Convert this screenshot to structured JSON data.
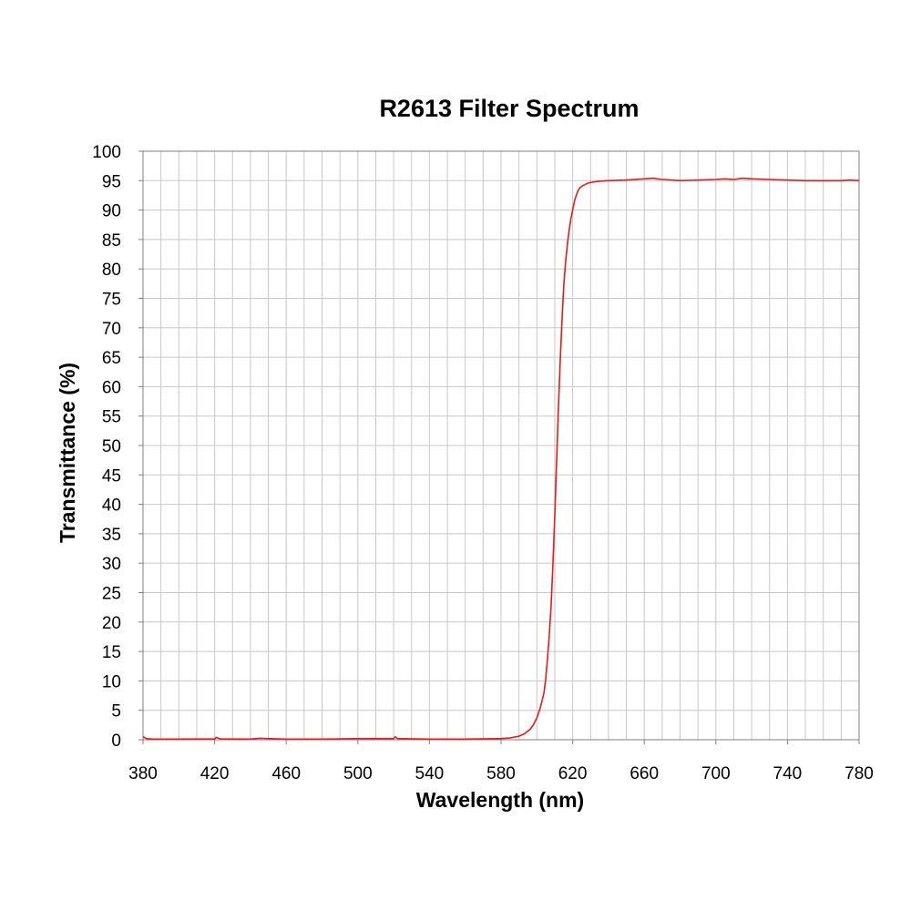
{
  "chart_data": {
    "type": "line",
    "title": "R2613 Filter Spectrum",
    "xlabel": "Wavelength (nm)",
    "ylabel": "Transmittance (%)",
    "xlim": [
      380,
      780
    ],
    "ylim": [
      0,
      100
    ],
    "x_ticks": [
      380,
      420,
      460,
      500,
      540,
      580,
      620,
      660,
      700,
      740,
      780
    ],
    "y_ticks": [
      0,
      5,
      10,
      15,
      20,
      25,
      30,
      35,
      40,
      45,
      50,
      55,
      60,
      65,
      70,
      75,
      80,
      85,
      90,
      95,
      100
    ],
    "x_minor_step": 10,
    "grid": true,
    "legend": "none",
    "series": [
      {
        "color": "#e8191c",
        "x": [
          380,
          382,
          385,
          400,
          420,
          421,
          423,
          440,
          445,
          460,
          480,
          490,
          500,
          520,
          521,
          522,
          540,
          560,
          580,
          585,
          590,
          593,
          596,
          598,
          600,
          602,
          604,
          605,
          606,
          607,
          608,
          609,
          610,
          611,
          612,
          613,
          614,
          615,
          616,
          617,
          618,
          619,
          620,
          621,
          622,
          623,
          624,
          625,
          626,
          628,
          630,
          635,
          640,
          650,
          660,
          665,
          670,
          680,
          690,
          700,
          705,
          710,
          715,
          720,
          730,
          740,
          750,
          760,
          770,
          775,
          780
        ],
        "y": [
          0.5,
          0.2,
          0.1,
          0.1,
          0.15,
          0.4,
          0.15,
          0.1,
          0.25,
          0.1,
          0.1,
          0.15,
          0.2,
          0.2,
          0.5,
          0.2,
          0.1,
          0.1,
          0.2,
          0.3,
          0.6,
          1.0,
          1.7,
          2.5,
          3.7,
          5.5,
          8.0,
          10.5,
          14,
          18,
          23,
          30,
          38,
          47,
          56,
          64,
          71,
          77,
          81,
          84,
          86.5,
          88.5,
          90,
          91.5,
          92.5,
          93.3,
          93.8,
          94.0,
          94.2,
          94.5,
          94.7,
          94.9,
          95.0,
          95.1,
          95.3,
          95.4,
          95.2,
          95.0,
          95.1,
          95.2,
          95.3,
          95.2,
          95.4,
          95.3,
          95.2,
          95.1,
          95.0,
          95.0,
          95.0,
          95.1,
          95.0
        ]
      }
    ]
  }
}
